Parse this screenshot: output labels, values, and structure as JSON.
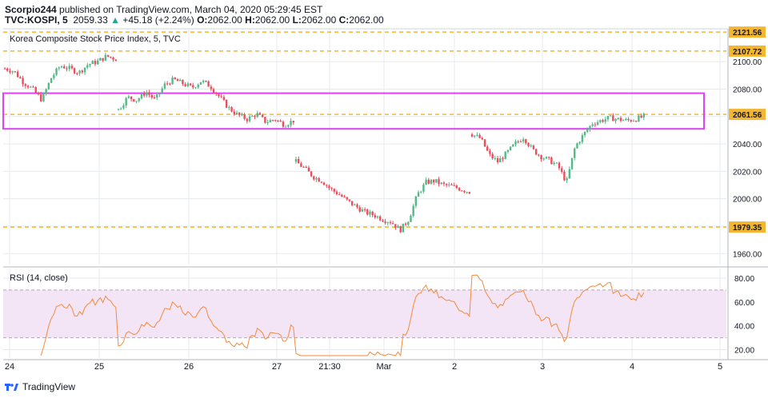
{
  "header": {
    "author": "Scorpio244",
    "published_text": " published on TradingView.com, March 04, 2020 05:29:45 EST",
    "symbol": "TVC:KOSPI, 5",
    "last": "2059.33",
    "change": "+45.18 (+2.24%)",
    "o_label": "O:",
    "o_value": "2062.00",
    "h_label": "H:",
    "h_value": "2062.00",
    "l_label": "L:",
    "l_value": "2062.00",
    "c_label": "C:",
    "c_value": "2062.00"
  },
  "footer": {
    "brand": "TradingView"
  },
  "colors": {
    "up": "#26a69a",
    "bull": "#53b987",
    "bear": "#eb4d5c",
    "level": "#f2b632",
    "box": "#e040fb",
    "rsi": "#f48a3c",
    "rsi_band": "#f3e5f5",
    "grid": "#e6e9ef"
  },
  "chart_data": [
    {
      "type": "candlestick",
      "title": "Korea Composite Stock Price Index, 5, TVC",
      "ylim": [
        1952,
        2124
      ],
      "yticks": [
        1960,
        1980,
        2000,
        2020,
        2040,
        2060,
        2080,
        2100
      ],
      "ytick_labels": [
        "1960.00",
        "1980.00",
        "2000.00",
        "2020.00",
        "2040.00",
        "2060.00",
        "2080.00",
        "2100.00"
      ],
      "levels": [
        {
          "value": 2121.56,
          "label": "2121.56"
        },
        {
          "value": 2107.72,
          "label": "2107.72"
        },
        {
          "value": 2061.56,
          "label": "2061.56"
        },
        {
          "value": 1979.35,
          "label": "1979.35"
        }
      ],
      "resistance_zone": [
        2051,
        2077
      ],
      "x_labels": [
        "24",
        "25",
        "26",
        "27",
        "21:30",
        "Mar",
        "2",
        "3",
        "4",
        "5"
      ],
      "segments": [
        {
          "label": "24",
          "path": [
            2095,
            2093,
            2085,
            2080,
            2072,
            2088,
            2097,
            2095,
            2092,
            2098,
            2100,
            2104,
            2102
          ]
        },
        {
          "label": "25",
          "path": [
            2065,
            2074,
            2072,
            2078,
            2072,
            2083,
            2087,
            2084,
            2081,
            2086,
            2082,
            2074,
            2066,
            2061,
            2058,
            2062,
            2056,
            2058,
            2054,
            2057
          ]
        },
        {
          "label": "27",
          "path": [
            2027,
            2022,
            2016,
            2013,
            2007,
            2003,
            1998,
            1994,
            1990,
            1988,
            1985,
            1983,
            1977,
            1985,
            2003,
            2012,
            2013,
            2010,
            2009,
            2007,
            2005
          ]
        },
        {
          "label": "2",
          "path": [
            2047,
            2044,
            2032,
            2027,
            2033,
            2040,
            2045,
            2036,
            2031,
            2028,
            2024,
            2012,
            2038,
            2047,
            2055,
            2057,
            2059,
            2058,
            2057,
            2058,
            2060
          ]
        }
      ]
    },
    {
      "type": "line",
      "title": "RSI (14, close)",
      "ylim": [
        13,
        88
      ],
      "band": [
        30,
        70
      ],
      "yticks": [
        20,
        40,
        60,
        80
      ],
      "ytick_labels": [
        "20.00",
        "40.00",
        "60.00",
        "80.00"
      ]
    }
  ]
}
